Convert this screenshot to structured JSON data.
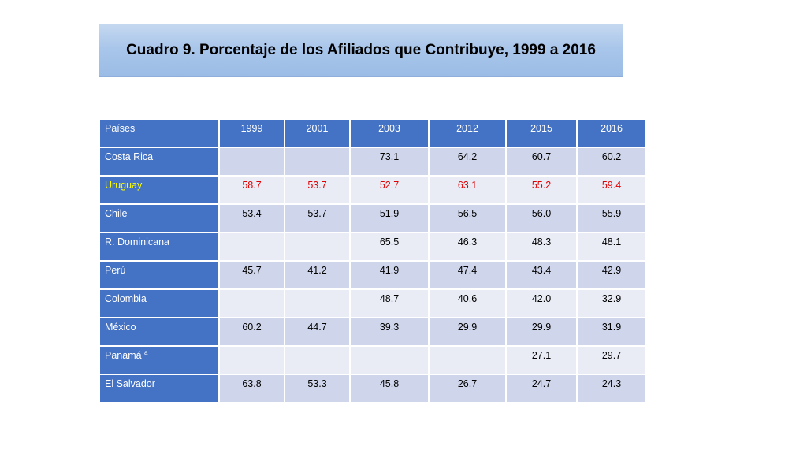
{
  "title": "Cuadro 9. Porcentaje de los Afiliados que Contribuye, 1999 a 2016",
  "table": {
    "headers": [
      "Países",
      "1999",
      "2001",
      "2003",
      "2012",
      "2015",
      "2016"
    ],
    "rows": [
      {
        "country": "Costa Rica",
        "values": [
          "",
          "",
          "73.1",
          "64.2",
          "60.7",
          "60.2"
        ]
      },
      {
        "country": "Uruguay",
        "values": [
          "58.7",
          "53.7",
          "52.7",
          "63.1",
          "55.2",
          "59.4"
        ],
        "highlight": true
      },
      {
        "country": "Chile",
        "values": [
          "53.4",
          "53.7",
          "51.9",
          "56.5",
          "56.0",
          "55.9"
        ]
      },
      {
        "country": "R. Dominicana",
        "values": [
          "",
          "",
          "65.5",
          "46.3",
          "48.3",
          "48.1"
        ]
      },
      {
        "country": "Perú",
        "values": [
          "45.7",
          "41.2",
          "41.9",
          "47.4",
          "43.4",
          "42.9"
        ]
      },
      {
        "country": "Colombia",
        "values": [
          "",
          "",
          "48.7",
          "40.6",
          "42.0",
          "32.9"
        ]
      },
      {
        "country": "México",
        "values": [
          "60.2",
          "44.7",
          "39.3",
          "29.9",
          "29.9",
          "31.9"
        ]
      },
      {
        "country": "Panamá",
        "footnote": "a",
        "values": [
          "",
          "",
          "",
          "",
          "27.1",
          "29.7"
        ]
      },
      {
        "country": "El Salvador",
        "values": [
          "63.8",
          "53.3",
          "45.8",
          "26.7",
          "24.7",
          "24.3"
        ]
      }
    ]
  },
  "colors": {
    "header_bg": "#4472c4",
    "row_odd": "#cfd5ea",
    "row_even": "#e9ebf5",
    "highlight_country": "#ffff00",
    "highlight_values": "#e00000"
  }
}
